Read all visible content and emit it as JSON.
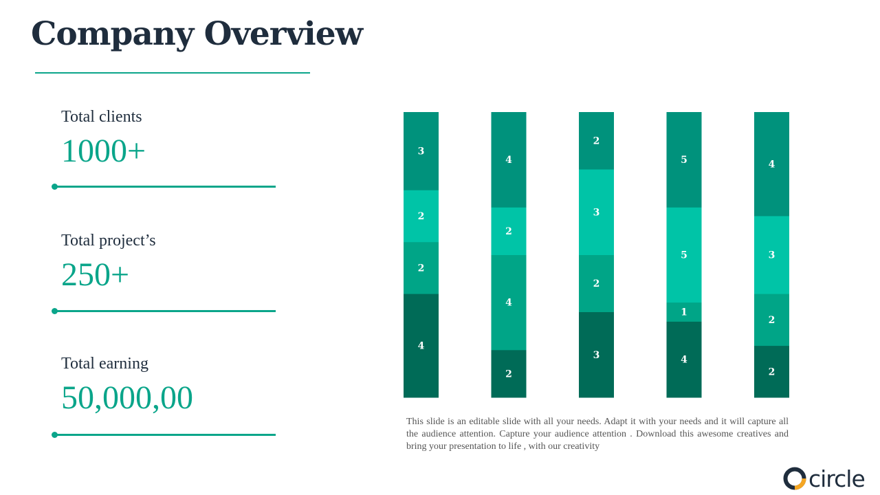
{
  "title": "Company Overview",
  "stats": [
    {
      "label": "Total clients",
      "value": "1000+"
    },
    {
      "label": "Total project’s",
      "value": "250+"
    },
    {
      "label": "Total earning",
      "value": "50,000,00"
    }
  ],
  "caption": "This slide is an editable slide with all your needs. Adapt it with your needs and it will capture all the audience attention. Capture your audience attention . Download this awesome creatives and bring your presentation to life , with our creativity",
  "logo": {
    "text": "circle",
    "ring_color": "#f5a623"
  },
  "colors": {
    "accent": "#0aa58a",
    "title": "#1f2d3d",
    "series": [
      "#006b57",
      "#00a587",
      "#00c4a7",
      "#00927c"
    ]
  },
  "chart_data": {
    "type": "bar",
    "stacked": true,
    "categories": [
      "",
      "",
      "",
      "",
      ""
    ],
    "series": [
      {
        "values": [
          4,
          2,
          3,
          4,
          2
        ]
      },
      {
        "values": [
          2,
          4,
          2,
          1,
          2
        ]
      },
      {
        "values": [
          2,
          2,
          3,
          5,
          3
        ]
      },
      {
        "values": [
          3,
          4,
          2,
          5,
          4
        ]
      }
    ],
    "data_labels": true,
    "axes_visible": false,
    "grid": false,
    "legend": "none"
  }
}
